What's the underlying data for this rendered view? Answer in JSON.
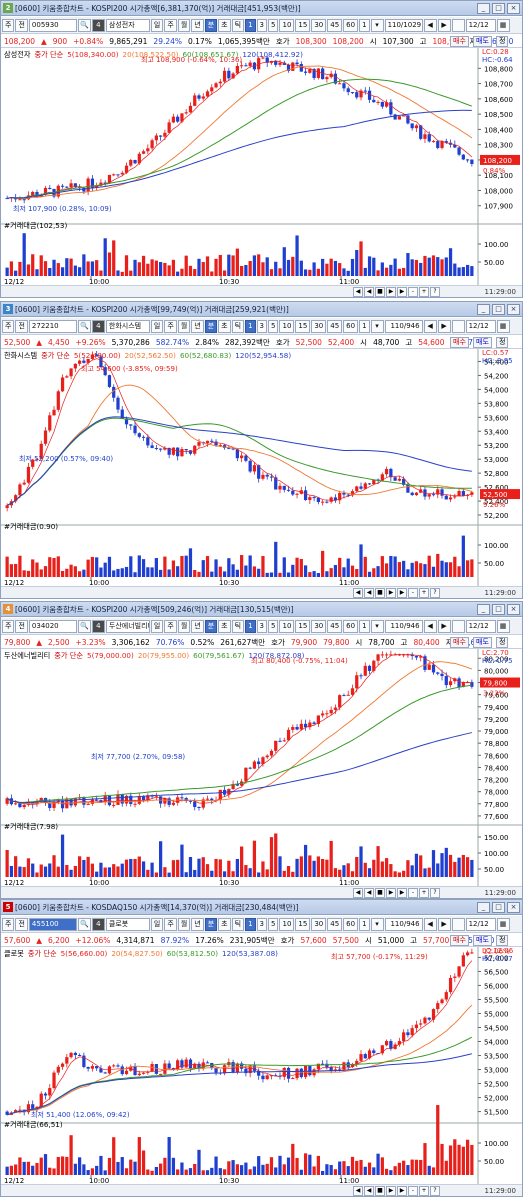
{
  "colors": {
    "up": "#e8201c",
    "down": "#1f3fd0",
    "ma5": "#e8201c",
    "ma20": "#f07830",
    "ma60": "#3a9a2a",
    "ma120": "#2a40c8",
    "vol_up": "#e8201c",
    "vol_down": "#1f3fd0"
  },
  "common": {
    "toolbar": {
      "menu": "주",
      "jeon": "전",
      "buttons": [
        "일",
        "주",
        "월",
        "년",
        "분",
        "초",
        "틱"
      ],
      "periods": [
        "1",
        "3",
        "5",
        "10",
        "15",
        "30",
        "45",
        "60"
      ],
      "count_select": "1",
      "page_btns": [
        "◀",
        "▶"
      ],
      "date": "12/12",
      "vol_label": "#거래대금"
    },
    "xaxis_date": "12/12",
    "xticks": [
      "10:00",
      "10:30",
      "11:00"
    ],
    "end_time": "11:29:00",
    "footer_ctrls": [
      "◀",
      "◀",
      "■",
      "▶",
      "▶",
      "-",
      "+",
      "?"
    ]
  },
  "panels": [
    {
      "num": "2",
      "num_color": "#6aa84f",
      "title": "[0600] 키움종합차트 - KOSPI200 시가총액[6,381,370(억)] 거래대금[451,953(백만)]",
      "code": "005930",
      "code_hl": false,
      "name": "삼성전자",
      "count": "110/1029",
      "quote": {
        "price": "108,200",
        "arrow": "▲",
        "change": "900",
        "pct": "+0.84%",
        "volume": "9,865,291",
        "v1": "29.24%",
        "v2": "0.17%",
        "amount": "1,065,395백만",
        "hoga_label": "호가",
        "h1": "108,300",
        "h2": "108,200",
        "open_label": "시",
        "open": "107,300",
        "high_label": "고",
        "high": "108,900",
        "low_label": "저",
        "low": "106,100",
        "buy": "매수",
        "r1": "매도",
        "r2": "정"
      },
      "legend": {
        "name": "삼성전자",
        "ma_label": "중가 단순",
        "ma5": "5(108,340.00)",
        "ma20": "20(108,522.50)",
        "ma60": "60(108,651.67)",
        "ma120": "120(108,412.92)"
      },
      "hilo": {
        "hi": "최고 108,900 (-0.64%, 10:36)",
        "lo": "최저 107,900 (0.28%, 10:09)"
      },
      "lc": "LC:0.28",
      "hc": "HC:-0.64",
      "cur_label": "108,200",
      "cur_pct": "0.84%",
      "vol_value": "(102,53)",
      "yticks": [
        "108,800",
        "108,700",
        "108,600",
        "108,500",
        "108,400",
        "108,300",
        "108,200",
        "108,100",
        "108,000",
        "107,900"
      ],
      "vticks": [
        "100.00",
        "50.00"
      ]
    },
    {
      "num": "3",
      "num_color": "#3d85c6",
      "title": "[0600] 키움종합차트 - KOSPI200 시가총액[99,749(억)] 거래대금[259,921(백만)]",
      "code": "272210",
      "code_hl": false,
      "name": "한화시스템",
      "count": "110/946",
      "quote": {
        "price": "52,500",
        "arrow": "▲",
        "change": "4,450",
        "pct": "+9.26%",
        "volume": "5,370,286",
        "v1": "582.74%",
        "v2": "2.84%",
        "amount": "282,392백만",
        "hoga_label": "호가",
        "h1": "52,500",
        "h2": "52,400",
        "open_label": "시",
        "open": "48,700",
        "high_label": "고",
        "high": "54,600",
        "low_label": "저",
        "low": "47,950",
        "buy": "매수",
        "r1": "매도",
        "r2": "정"
      },
      "legend": {
        "name": "한화시스템",
        "ma_label": "중가 단순",
        "ma5": "5(52,480.00)",
        "ma20": "20(52,562.50)",
        "ma60": "60(52,680.83)",
        "ma120": "120(52,954.58)"
      },
      "hilo": {
        "hi": "최고 54,600 (-3.85%, 09:59)",
        "lo": "최저 52,200 (0.57%, 09:40)"
      },
      "lc": "LC:0.57",
      "hc": "HC:-3.85",
      "cur_label": "52,500",
      "cur_pct": "9.26%",
      "vol_value": "(0.90)",
      "yticks": [
        "54,400",
        "54,200",
        "54,000",
        "53,800",
        "53,600",
        "53,400",
        "53,200",
        "53,000",
        "52,800",
        "52,600",
        "52,400",
        "52,200"
      ],
      "vticks": [
        "100.00",
        "50.00"
      ]
    },
    {
      "num": "4",
      "num_color": "#e69138",
      "title": "[0600] 키움종합차트 - KOSPI200 시가총액[509,246(억)] 거래대금[130,515(백만)]",
      "code": "034020",
      "code_hl": false,
      "name": "두산에너빌리티",
      "count": "110/946",
      "quote": {
        "price": "79,800",
        "arrow": "▲",
        "change": "2,500",
        "pct": "+3.23%",
        "volume": "3,306,162",
        "v1": "70.76%",
        "v2": "0.52%",
        "amount": "261,627백만",
        "hoga_label": "호가",
        "h1": "79,900",
        "h2": "79,800",
        "open_label": "시",
        "open": "78,700",
        "high_label": "고",
        "high": "80,400",
        "low_label": "저",
        "low": "77,600",
        "buy": "매수",
        "r1": "매도",
        "r2": "정"
      },
      "legend": {
        "name": "두산에너빌리티",
        "ma_label": "중가 단순",
        "ma5": "5(79,000.00)",
        "ma20": "20(79,955.00)",
        "ma60": "60(79,561.67)",
        "ma120": "120(78,872.08)"
      },
      "hilo": {
        "hi": "최고 80,400 (-0.75%, 11:04)",
        "lo": "최저 77,700 (2.70%, 09:58)"
      },
      "lc": "LC:2.70",
      "hc": "HC:-0.75",
      "cur_label": "79,800",
      "cur_pct": "3.23%",
      "vol_value": "(7.98)",
      "yticks": [
        "80,200",
        "80,000",
        "79,800",
        "79,600",
        "79,400",
        "79,200",
        "79,000",
        "78,800",
        "78,600",
        "78,400",
        "78,200",
        "78,000",
        "77,800",
        "77,600"
      ],
      "vticks": [
        "150.00",
        "100.00",
        "50.00"
      ]
    },
    {
      "num": "5",
      "num_color": "#cc0000",
      "title": "[0600] 키움종합차트 - KOSDAQ150 시가총액[14,370(억)] 거래대금[230,484(백만)]",
      "code": "455100",
      "code_hl": true,
      "name": "클로봇",
      "count": "110/946",
      "quote": {
        "price": "57,600",
        "arrow": "▲",
        "change": "6,200",
        "pct": "+12.06%",
        "volume": "4,314,871",
        "v1": "87.92%",
        "v2": "17.26%",
        "amount": "231,905백만",
        "hoga_label": "호가",
        "h1": "57,600",
        "h2": "57,500",
        "open_label": "시",
        "open": "51,000",
        "high_label": "고",
        "high": "57,700",
        "low_label": "저",
        "low": "50,800",
        "buy": "매수",
        "r1": "매도",
        "r2": "정"
      },
      "legend": {
        "name": "클로봇",
        "ma_label": "중가 단순",
        "ma5": "5(56,660.00)",
        "ma20": "20(54,827.50)",
        "ma60": "60(53,812.50)",
        "ma120": "120(53,387.08)"
      },
      "hilo": {
        "hi": "최고 57,700 (-0.17%, 11:29)",
        "lo": "최저 51,400 (12.06%, 09:42)"
      },
      "lc": "LC:12.06",
      "hc": "HC:-0.17",
      "cur_label": "57,600",
      "cur_pct": "12.06%",
      "vol_value": "(66,51)",
      "yticks": [
        "57,000",
        "56,500",
        "56,000",
        "55,500",
        "55,000",
        "54,500",
        "54,000",
        "53,500",
        "53,000",
        "52,500",
        "52,000",
        "51,500"
      ],
      "vticks": [
        "100.00",
        "50.00"
      ]
    }
  ],
  "chart_data": [
    {
      "type": "candlestick",
      "symbol": "005930",
      "name": "삼성전자",
      "ylim": [
        107800,
        108920
      ],
      "x": [
        "09:21",
        "11:29"
      ],
      "trend": [
        107950,
        107980,
        108000,
        108050,
        108150,
        108300,
        108500,
        108700,
        108800,
        108850,
        108800,
        108750,
        108650,
        108550,
        108400,
        108300,
        108200
      ],
      "ma60_end": 108651.67,
      "ma120_end": 108412.92
    },
    {
      "type": "candlestick",
      "symbol": "272210",
      "name": "한화시스템",
      "ylim": [
        52100,
        54550
      ],
      "x": [
        "09:21",
        "11:29"
      ],
      "trend": [
        52300,
        53000,
        54200,
        54600,
        53600,
        53200,
        53100,
        53300,
        53000,
        52700,
        52500,
        52400,
        52600,
        52800,
        52500,
        52500,
        52500
      ],
      "ma60_end": 52680.83,
      "ma120_end": 52954.58
    },
    {
      "type": "candlestick",
      "symbol": "034020",
      "name": "두산에너빌리티",
      "ylim": [
        77500,
        80320
      ],
      "x": [
        "09:21",
        "11:29"
      ],
      "trend": [
        77800,
        77850,
        77800,
        77900,
        77850,
        77900,
        77800,
        77850,
        78200,
        78700,
        79100,
        79300,
        79800,
        80400,
        80300,
        79800,
        79800
      ],
      "ma60_end": 79561.67,
      "ma120_end": 78872.08
    },
    {
      "type": "candlestick",
      "symbol": "455100",
      "name": "클로봇",
      "ylim": [
        51200,
        57300
      ],
      "x": [
        "09:21",
        "11:29"
      ],
      "trend": [
        51500,
        51600,
        53500,
        53100,
        52900,
        53000,
        53200,
        53000,
        53100,
        52800,
        52900,
        53100,
        53300,
        53800,
        54300,
        55500,
        57600
      ],
      "ma60_end": 53812.5,
      "ma120_end": 53387.08
    }
  ]
}
